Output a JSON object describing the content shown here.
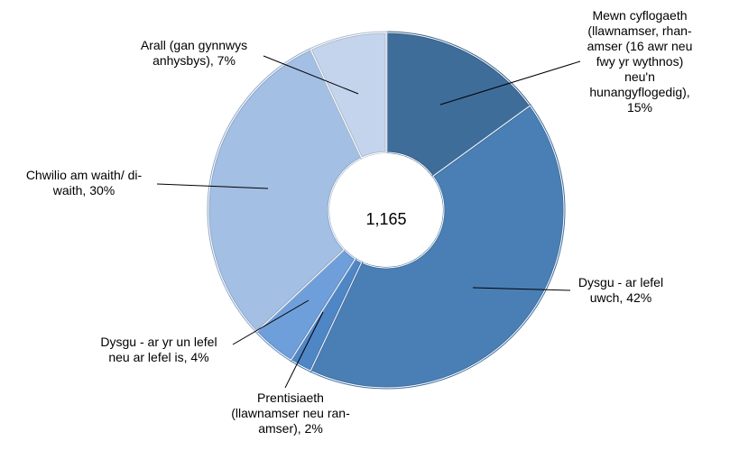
{
  "chart_data": {
    "type": "pie",
    "center_label": "1,165",
    "slices": [
      {
        "lines": [
          "Mewn cyflogaeth",
          "(llawnamser, rhan-",
          "amser (16 awr neu",
          "fwy yr wythnos)",
          "neu'n",
          "hunangyflogedig),",
          "15%"
        ],
        "value": 15,
        "color": "#3f6d9a"
      },
      {
        "lines": [
          "Dysgu - ar lefel",
          "uwch, 42%"
        ],
        "value": 42,
        "color": "#4a7fb5"
      },
      {
        "lines": [
          "Prentisiaeth",
          "(llawnamser neu ran-",
          "amser), 2%"
        ],
        "value": 2,
        "color": "#4f86c6"
      },
      {
        "lines": [
          "Dysgu - ar yr un lefel",
          "neu ar lefel is, 4%"
        ],
        "value": 4,
        "color": "#6f9fda"
      },
      {
        "lines": [
          "Chwilio am waith/  di-",
          "waith, 30%"
        ],
        "value": 30,
        "color": "#a3bfe4"
      },
      {
        "lines": [
          "Arall (gan gynnwys",
          "anhysbys), 7%"
        ],
        "value": 7,
        "color": "#c3d4ec"
      }
    ]
  }
}
